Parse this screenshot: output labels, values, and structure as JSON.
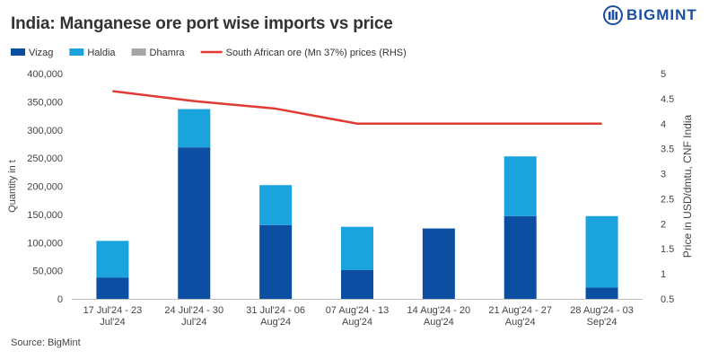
{
  "header": {
    "title": "India: Manganese ore port wise imports vs price",
    "logo_text": "BIGMINT",
    "source": "Source: BigMint"
  },
  "chart_data": {
    "type": "bar",
    "stacked": true,
    "categories": [
      [
        "17 Jul'24 - 23",
        "Jul'24"
      ],
      [
        "24 Jul'24 - 30",
        "Jul'24"
      ],
      [
        "31 Jul'24 - 06",
        "Aug'24"
      ],
      [
        "07 Aug'24 - 13",
        "Aug'24"
      ],
      [
        "14 Aug'24 - 20",
        "Aug'24"
      ],
      [
        "21 Aug'24 - 27",
        "Aug'24"
      ],
      [
        "28 Aug'24 - 03",
        "Sep'24"
      ]
    ],
    "series": [
      {
        "name": "Vizag",
        "type": "bar",
        "axis": "left",
        "color": "#0b4ea2",
        "values": [
          38000,
          269000,
          131000,
          51000,
          125000,
          147000,
          20000
        ]
      },
      {
        "name": "Haldia",
        "type": "bar",
        "axis": "left",
        "color": "#1aa3dc",
        "values": [
          65000,
          68000,
          71000,
          77000,
          0,
          106000,
          127000
        ]
      },
      {
        "name": "Dhamra",
        "type": "bar",
        "axis": "left",
        "color": "#a6a6a6",
        "values": [
          0,
          0,
          0,
          0,
          0,
          0,
          0
        ]
      },
      {
        "name": "South African ore (Mn 37%) prices (RHS)",
        "type": "line",
        "axis": "right",
        "color": "#e03a32",
        "values": [
          4.65,
          4.45,
          4.3,
          4.0,
          4.0,
          4.0,
          4.0
        ]
      }
    ],
    "ylabel": "Quantity in t",
    "y2label": "Price in USD/dmtu, CNF India",
    "ylim": [
      0,
      400000
    ],
    "y2lim": [
      0.5,
      5
    ],
    "yticks": [
      "0",
      "50,000",
      "100,000",
      "150,000",
      "200,000",
      "250,000",
      "300,000",
      "350,000",
      "400,000"
    ],
    "y2ticks": [
      "0.5",
      "1",
      "1.5",
      "2",
      "2.5",
      "3",
      "3.5",
      "4",
      "4.5",
      "5"
    ],
    "grid": false,
    "legend": "top-left"
  }
}
